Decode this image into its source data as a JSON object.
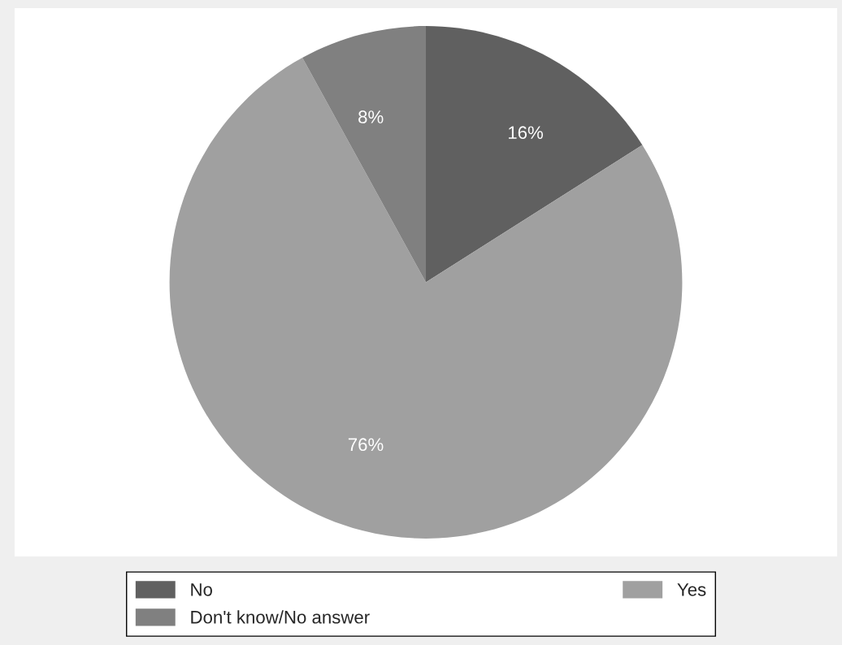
{
  "chart_data": {
    "type": "pie",
    "categories": [
      "No",
      "Yes",
      "Don't know/No answer"
    ],
    "values": [
      16,
      76,
      8
    ],
    "colors": [
      "#606060",
      "#a0a0a0",
      "#808080"
    ],
    "value_labels": [
      "16%",
      "76%",
      "8%"
    ],
    "legend": "bottom"
  }
}
